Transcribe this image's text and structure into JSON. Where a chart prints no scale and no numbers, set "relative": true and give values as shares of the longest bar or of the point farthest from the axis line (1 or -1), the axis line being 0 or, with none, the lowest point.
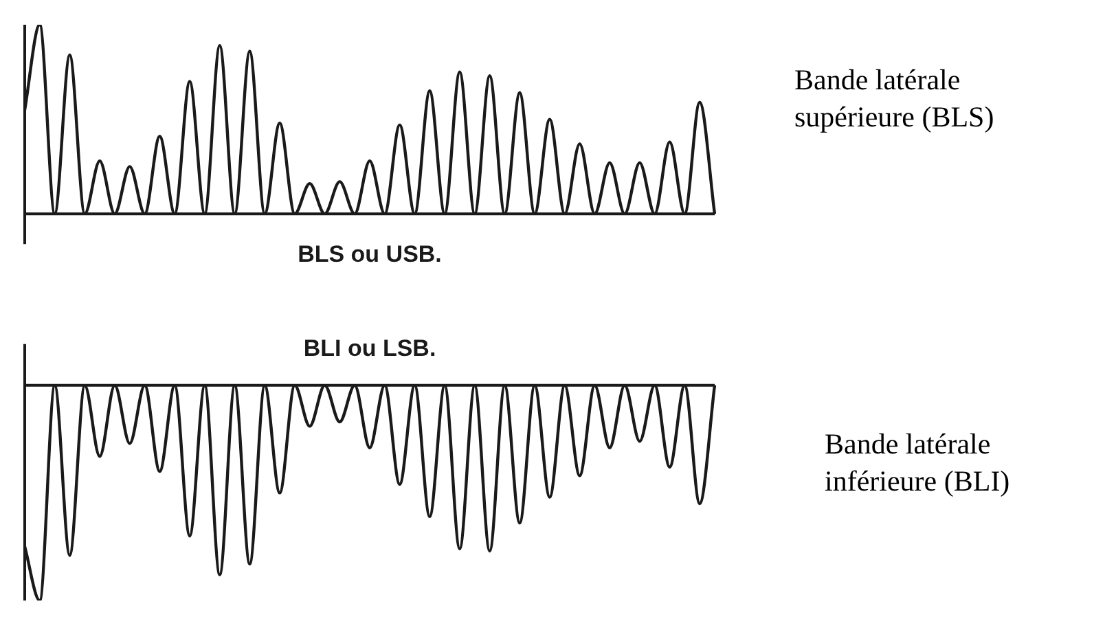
{
  "chart_data": [
    {
      "type": "line",
      "xlabel": "BLS ou USB.",
      "relative": true,
      "tick_labels": false,
      "grid": false,
      "legend": false,
      "marker": "none",
      "line_style": "solid",
      "annotations": [
        "Bande latérale supérieure (BLS)"
      ],
      "categories": [
        null,
        null,
        null,
        null,
        null,
        null,
        null,
        null,
        null,
        null,
        null,
        null,
        null,
        null,
        null,
        null,
        null,
        null,
        null,
        null,
        null,
        null,
        null,
        null,
        null,
        null,
        null,
        null,
        null,
        null,
        null,
        null,
        null,
        null,
        null,
        null,
        null,
        null,
        null,
        null,
        null,
        null,
        null,
        null,
        null,
        null,
        null
      ],
      "series": [
        {
          "color": "#1a1a1a",
          "values": [
            0.55,
            1,
            0,
            0.84,
            0,
            0.28,
            0,
            0.25,
            0,
            0.41,
            0,
            0.7,
            0,
            0.89,
            0,
            0.86,
            0,
            0.48,
            0,
            0.16,
            0,
            0.17,
            0,
            0.28,
            0,
            0.47,
            0,
            0.65,
            0,
            0.75,
            0,
            0.73,
            0,
            0.64,
            0,
            0.5,
            0,
            0.37,
            0,
            0.27,
            0,
            0.27,
            0,
            0.38,
            0,
            0.59,
            0
          ]
        }
      ]
    },
    {
      "type": "line",
      "title": "BLI ou LSB.",
      "relative": true,
      "tick_labels": false,
      "grid": false,
      "legend": false,
      "marker": "none",
      "line_style": "solid",
      "annotations": [
        "Bande latérale inférieure (BLI)"
      ],
      "categories": [
        null,
        null,
        null,
        null,
        null,
        null,
        null,
        null,
        null,
        null,
        null,
        null,
        null,
        null,
        null,
        null,
        null,
        null,
        null,
        null,
        null,
        null,
        null,
        null,
        null,
        null,
        null,
        null,
        null,
        null,
        null,
        null,
        null,
        null,
        null,
        null,
        null,
        null,
        null,
        null,
        null,
        null,
        null,
        null,
        null,
        null,
        null
      ],
      "series": [
        {
          "color": "#1a1a1a",
          "values": [
            -0.75,
            -1,
            0,
            -0.79,
            0,
            -0.33,
            0,
            -0.27,
            0,
            -0.4,
            0,
            -0.7,
            0,
            -0.88,
            0,
            -0.83,
            0,
            -0.5,
            0,
            -0.19,
            0,
            -0.17,
            0,
            -0.29,
            0,
            -0.46,
            0,
            -0.61,
            0,
            -0.76,
            0,
            -0.77,
            0,
            -0.64,
            0,
            -0.52,
            0,
            -0.42,
            0,
            -0.29,
            0,
            -0.26,
            0,
            -0.38,
            0,
            -0.55,
            0
          ]
        }
      ]
    }
  ]
}
